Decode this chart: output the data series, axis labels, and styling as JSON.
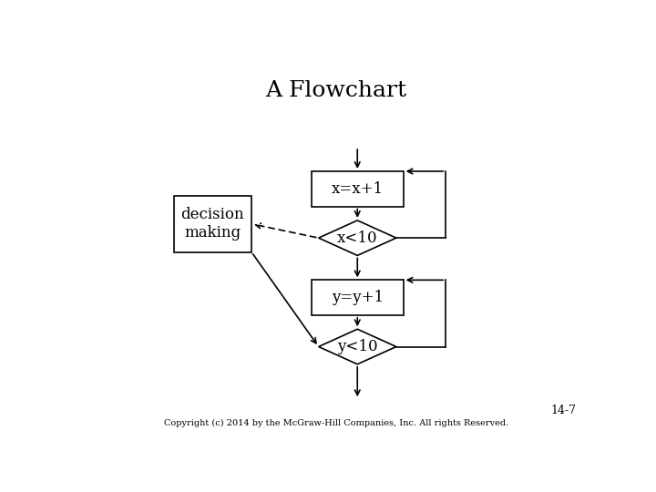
{
  "title": "A Flowchart",
  "title_fontsize": 18,
  "title_font": "serif",
  "bg_color": "#ffffff",
  "box_color": "#ffffff",
  "edge_color": "#000000",
  "text_color": "#000000",
  "font_family": "serif",
  "copyright": "Copyright (c) 2014 by the McGraw-Hill Companies, Inc. All rights Reserved.",
  "page_num": "14-7",
  "decision_making_label": "decision\nmaking",
  "box1_label": "x=x+1",
  "diamond1_label": "x<10",
  "box2_label": "y=y+1",
  "diamond2_label": "y<10",
  "fontsize": 12,
  "lw": 1.2
}
